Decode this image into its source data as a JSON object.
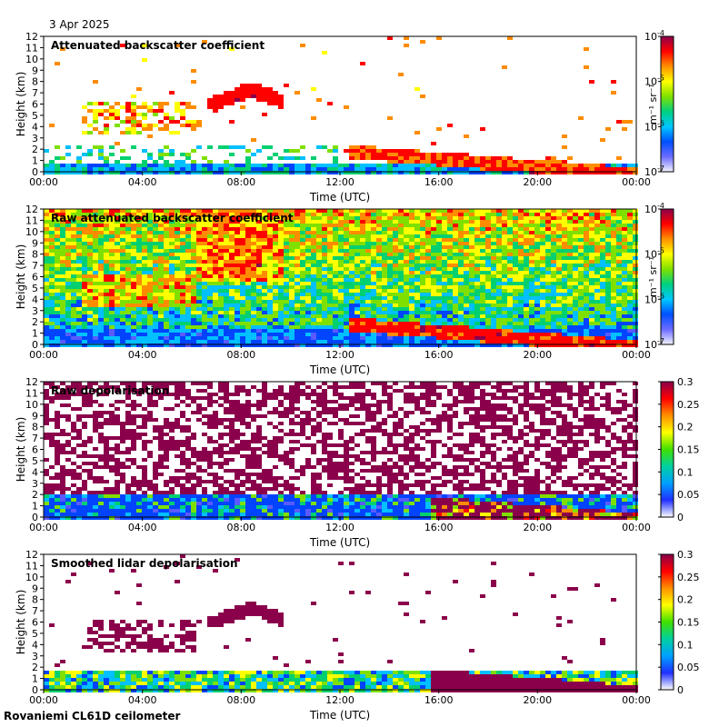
{
  "header": {
    "date": "3 Apr 2025"
  },
  "footer": {
    "station": "Rovaniemi CL61D ceilometer"
  },
  "colors": {
    "scale": [
      "#ffffff",
      "#5a5aff",
      "#0044ff",
      "#00c0ff",
      "#00d070",
      "#7fe000",
      "#ffff00",
      "#ff8c00",
      "#ff0000",
      "#8b004b"
    ]
  },
  "chart_data": [
    {
      "type": "heatmap",
      "title": "Attenuated backscatter coefficient",
      "xlabel": "Time (UTC)",
      "ylabel": "Height (km)",
      "x_ticks": [
        "00:00",
        "04:00",
        "08:00",
        "12:00",
        "16:00",
        "20:00",
        "00:00"
      ],
      "y_ticks": [
        0,
        1,
        2,
        3,
        4,
        5,
        6,
        7,
        8,
        9,
        10,
        11,
        12
      ],
      "ylim": [
        0,
        12
      ],
      "colorbar": {
        "scale": "log",
        "range": [
          1e-07,
          0.0001
        ],
        "unit": "m-1 sr-1",
        "ticks": [
          {
            "base": "10",
            "exp": "-4"
          },
          {
            "base": "10",
            "exp": "-5"
          },
          {
            "base": "10",
            "exp": "-6"
          },
          {
            "base": "10",
            "exp": "-7"
          }
        ]
      },
      "features": [
        {
          "desc": "boundary layer",
          "t": [
            0,
            24
          ],
          "h": [
            0,
            1.2
          ],
          "level": 0.3
        },
        {
          "desc": "cloud layer",
          "t": [
            1.5,
            6
          ],
          "h": [
            3.5,
            6
          ],
          "level": 0.7
        },
        {
          "desc": "cloud layer",
          "t": [
            6.5,
            9.7
          ],
          "h": [
            6,
            8
          ],
          "level": 0.9
        },
        {
          "desc": "descending low cloud",
          "t": [
            12.3,
            24
          ],
          "h": [
            0.3,
            2.3
          ],
          "level": 0.85
        }
      ]
    },
    {
      "type": "heatmap",
      "title": "Raw attenuated backscatter coefficient",
      "xlabel": "Time (UTC)",
      "ylabel": "Height (km)",
      "x_ticks": [
        "00:00",
        "04:00",
        "08:00",
        "12:00",
        "16:00",
        "20:00",
        "00:00"
      ],
      "y_ticks": [
        0,
        1,
        2,
        3,
        4,
        5,
        6,
        7,
        8,
        9,
        10,
        11,
        12
      ],
      "ylim": [
        0,
        12
      ],
      "colorbar": {
        "scale": "log",
        "range": [
          1e-07,
          0.0001
        ],
        "unit": "m-1 sr-1",
        "ticks": [
          {
            "base": "10",
            "exp": "-4"
          },
          {
            "base": "10",
            "exp": "-5"
          },
          {
            "base": "10",
            "exp": "-6"
          },
          {
            "base": "10",
            "exp": "-7"
          }
        ]
      }
    },
    {
      "type": "heatmap",
      "title": "Raw depolarisation",
      "xlabel": "Time (UTC)",
      "ylabel": "Height (km)",
      "x_ticks": [
        "00:00",
        "04:00",
        "08:00",
        "12:00",
        "16:00",
        "20:00",
        "00:00"
      ],
      "y_ticks": [
        0,
        1,
        2,
        3,
        4,
        5,
        6,
        7,
        8,
        9,
        10,
        11,
        12
      ],
      "ylim": [
        0,
        12
      ],
      "colorbar": {
        "scale": "linear",
        "range": [
          0,
          0.3
        ],
        "ticks": [
          "0.3",
          "0.25",
          "0.2",
          "0.15",
          "0.1",
          "0.05",
          "0"
        ]
      }
    },
    {
      "type": "heatmap",
      "title": "Smoothed lidar depolarisation",
      "xlabel": "Time (UTC)",
      "ylabel": "Height (km)",
      "x_ticks": [
        "00:00",
        "04:00",
        "08:00",
        "12:00",
        "16:00",
        "20:00",
        "00:00"
      ],
      "y_ticks": [
        0,
        1,
        2,
        3,
        4,
        5,
        6,
        7,
        8,
        9,
        10,
        11,
        12
      ],
      "ylim": [
        0,
        12
      ],
      "colorbar": {
        "scale": "linear",
        "range": [
          0,
          0.3
        ],
        "ticks": [
          "0.3",
          "0.25",
          "0.2",
          "0.15",
          "0.1",
          "0.05",
          "0"
        ]
      }
    }
  ]
}
